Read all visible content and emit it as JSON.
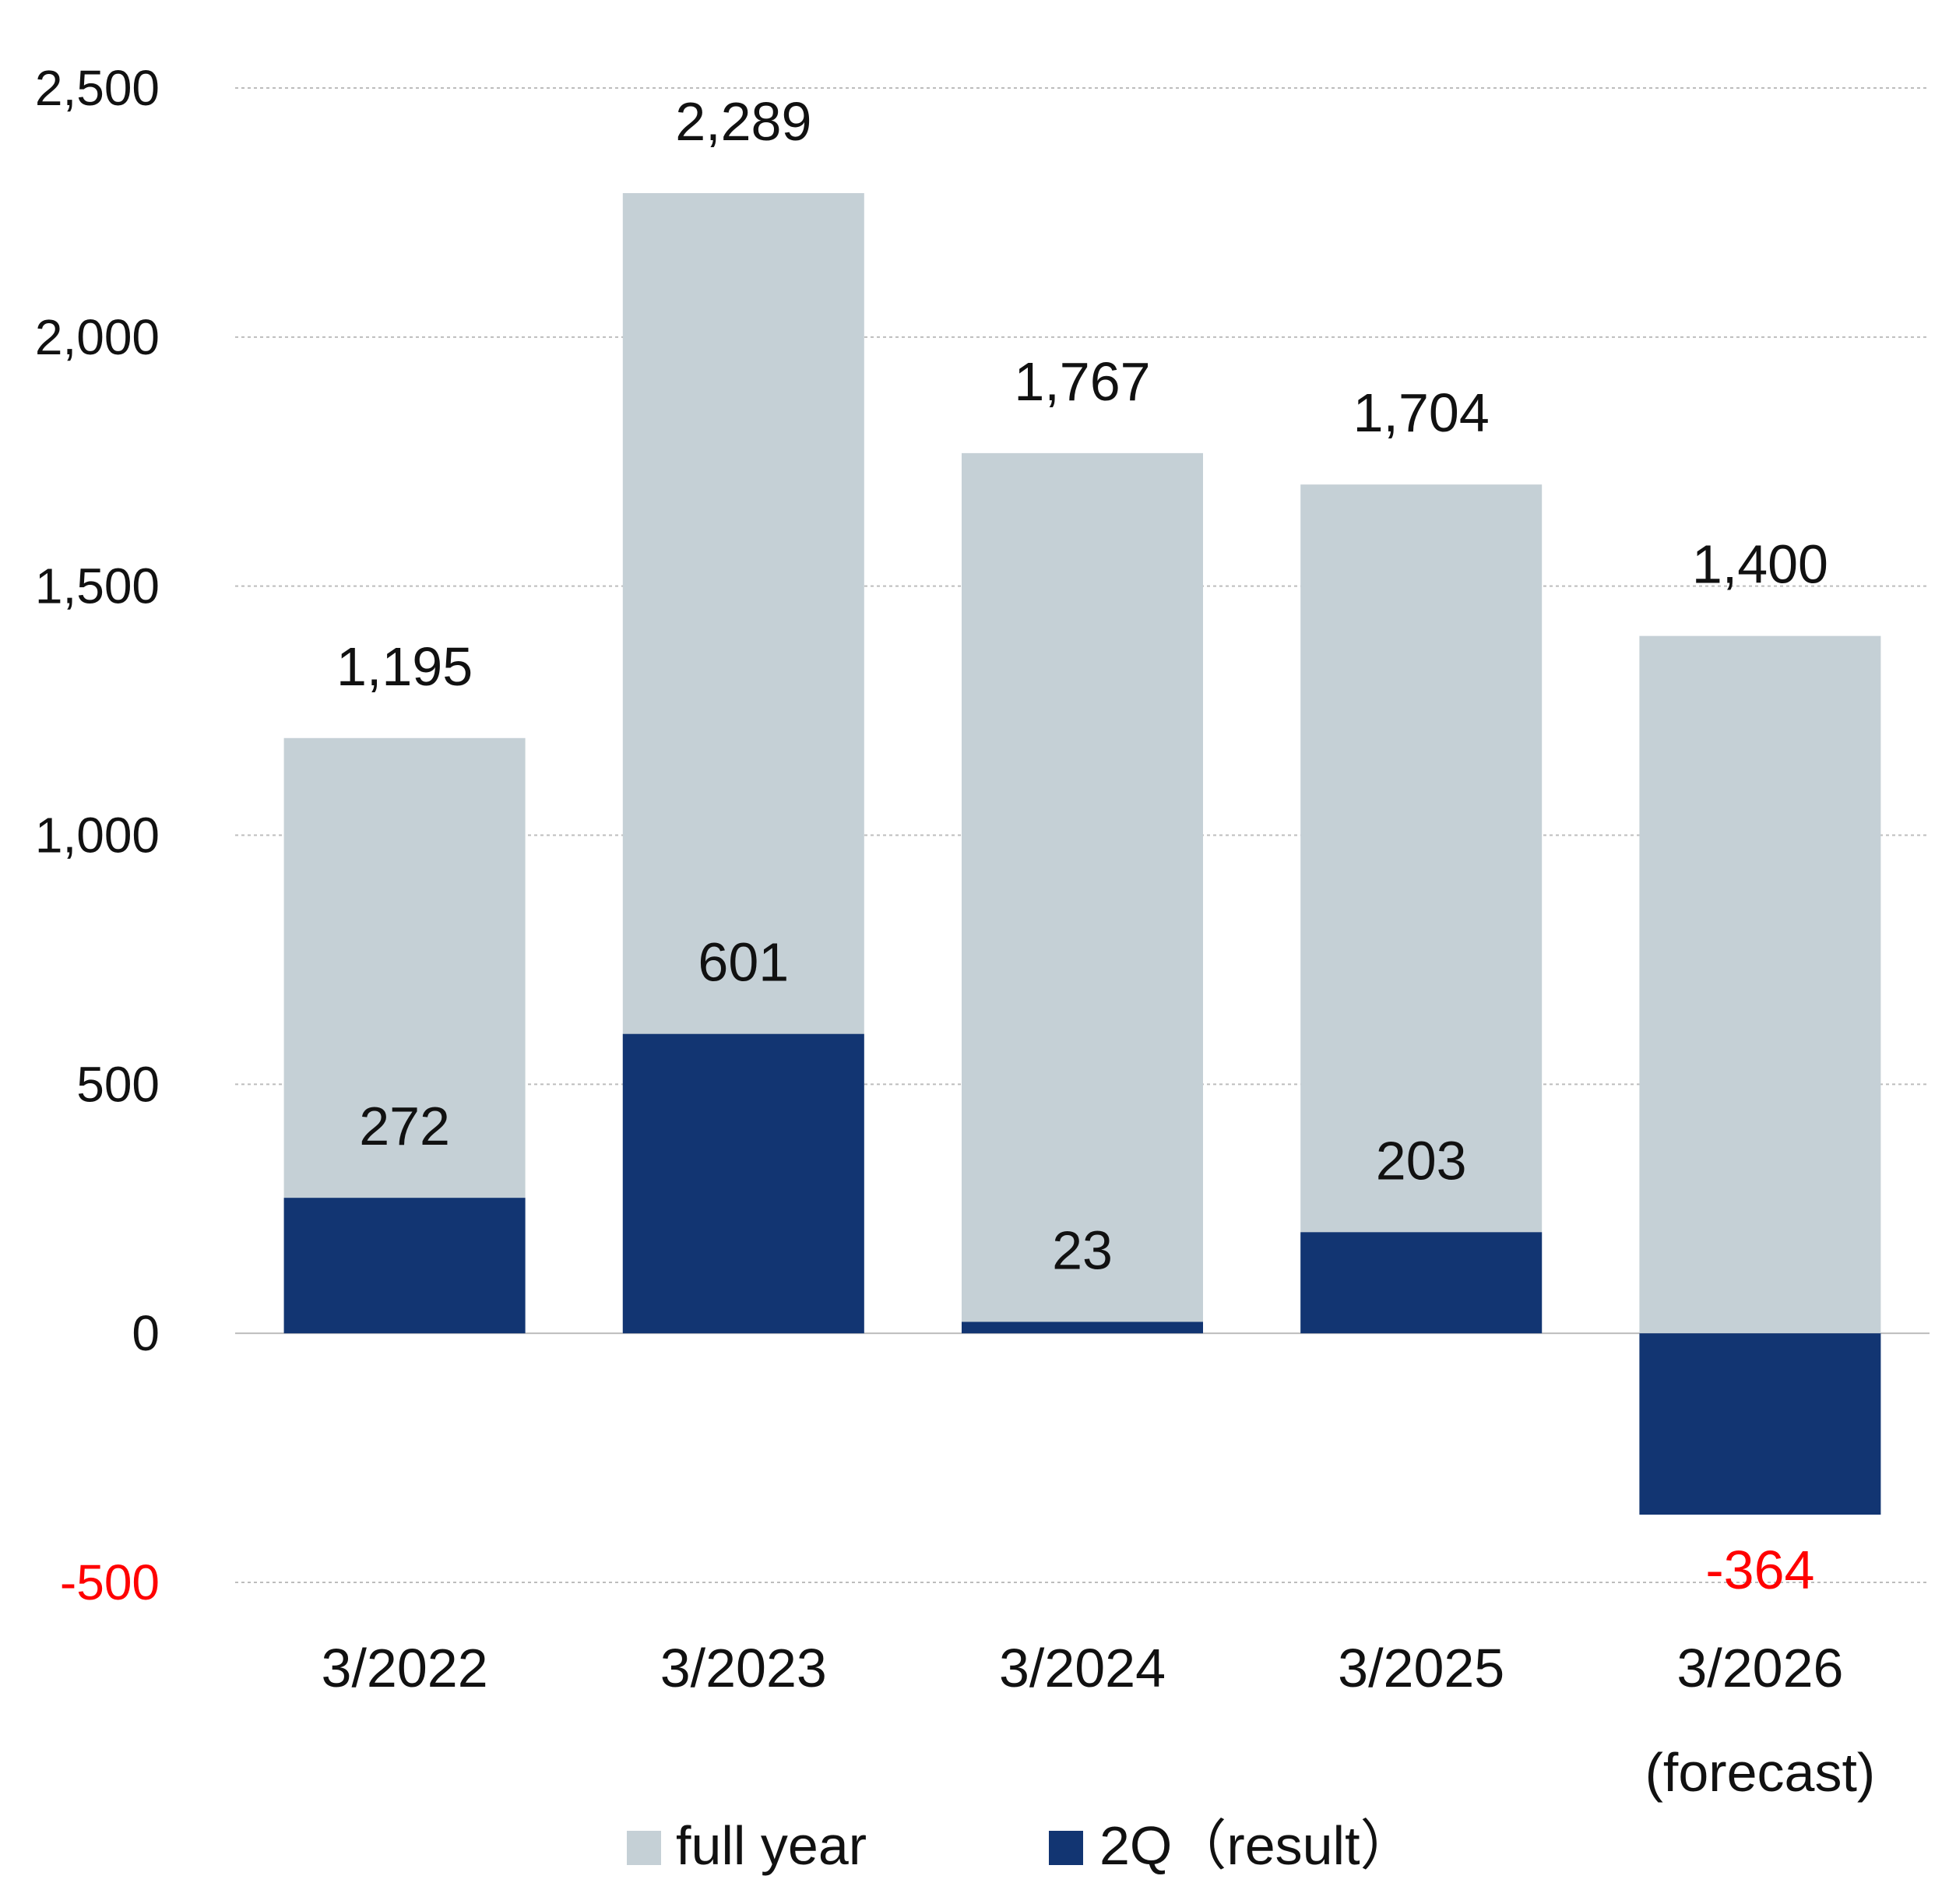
{
  "chart_data": {
    "type": "bar",
    "categories": [
      "3/2022",
      "3/2023",
      "3/2024",
      "3/2025",
      "3/2026"
    ],
    "category_sublabels": [
      "",
      "",
      "",
      "",
      "(forecast)"
    ],
    "series": [
      {
        "name": "full year",
        "values": [
          1195,
          2289,
          1767,
          1704,
          1400
        ],
        "color": "#c5d0d6"
      },
      {
        "name": "2Q（result）",
        "values": [
          272,
          601,
          23,
          203,
          -364
        ],
        "color": "#123572"
      }
    ],
    "data_labels": {
      "full year": [
        "1,195",
        "2,289",
        "1,767",
        "1,704",
        "1,400"
      ],
      "2Q（result）": [
        "272",
        "601",
        "23",
        "203",
        "-364"
      ]
    },
    "y_ticks": [
      -500,
      0,
      500,
      1000,
      1500,
      2000,
      2500
    ],
    "y_tick_labels": [
      "-500",
      "0",
      "500",
      "1,000",
      "1,500",
      "2,000",
      "2,500"
    ],
    "ylim": [
      -500,
      2500
    ],
    "negative_color": "#ff0000",
    "grid": true,
    "legend_position": "bottom",
    "title": "",
    "xlabel": "",
    "ylabel": ""
  }
}
